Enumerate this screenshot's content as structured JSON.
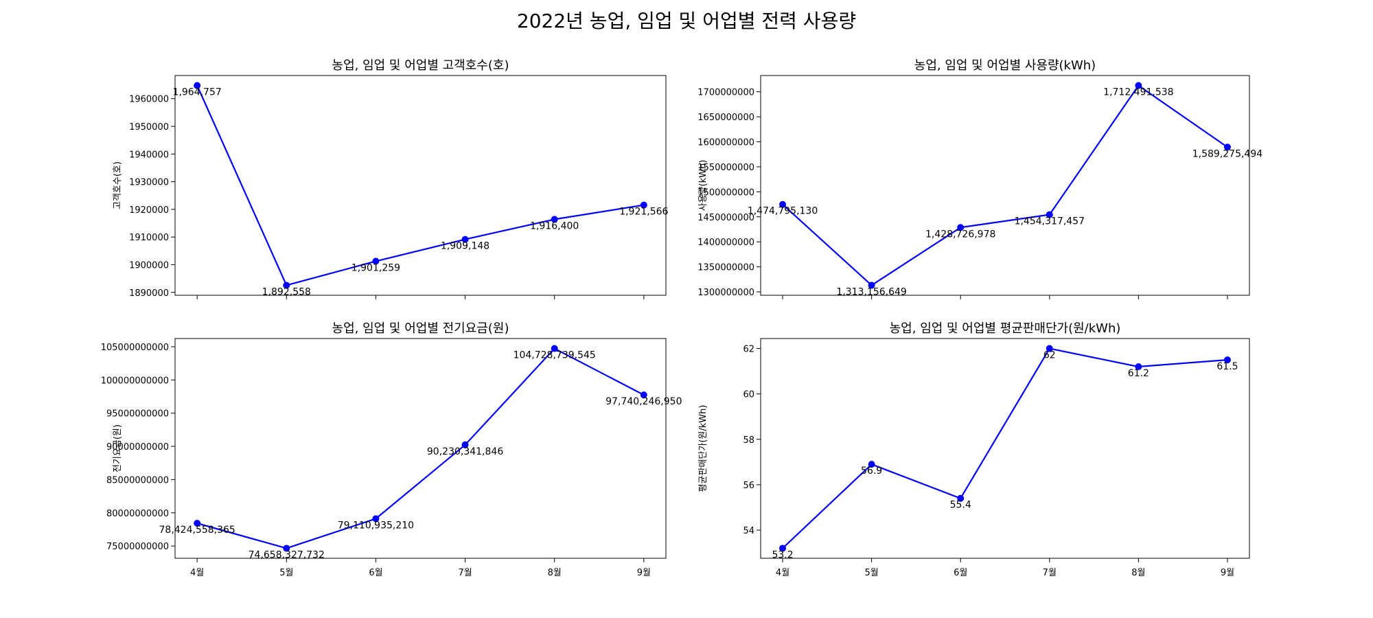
{
  "figure": {
    "title": "2022년 농업, 임업 및 어업별 전력 사용량"
  },
  "colors": {
    "line": "#0000ff",
    "marker": "#0000ff",
    "axes": "#000000",
    "background": "#ffffff"
  },
  "chart_data": [
    {
      "type": "line",
      "title": "농업, 임업 및 어업별 고객호수(호)",
      "xlabel": "",
      "ylabel": "고객호수(호)",
      "categories": [
        "4월",
        "5월",
        "6월",
        "7월",
        "8월",
        "9월"
      ],
      "values": [
        1964757,
        1892558,
        1901259,
        1909148,
        1916400,
        1921566
      ],
      "data_labels": [
        "1,964,757",
        "1,892,558",
        "1,901,259",
        "1,909,148",
        "1,916,400",
        "1,921,566"
      ],
      "ylim": [
        1888950,
        1968365
      ],
      "yticks": [
        1890000,
        1900000,
        1910000,
        1920000,
        1930000,
        1940000,
        1950000,
        1960000
      ],
      "ytick_labels": [
        "1890000",
        "1900000",
        "1910000",
        "1920000",
        "1930000",
        "1940000",
        "1950000",
        "1960000"
      ],
      "show_xticklabels": false,
      "grid": false,
      "marker": "circle"
    },
    {
      "type": "line",
      "title": "농업, 임업 및 어업별 사용량(kWh)",
      "xlabel": "",
      "ylabel": "사용량(kWh)",
      "categories": [
        "4월",
        "5월",
        "6월",
        "7월",
        "8월",
        "9월"
      ],
      "values": [
        1474795130,
        1313156649,
        1428726978,
        1454317457,
        1712491538,
        1589275494
      ],
      "data_labels": [
        "1,474,795,130",
        "1,313,156,649",
        "1,428,726,978",
        "1,454,317,457",
        "1,712,491,538",
        "1,589,275,494"
      ],
      "ylim": [
        1293190000,
        1732457000
      ],
      "yticks": [
        1300000000,
        1350000000,
        1400000000,
        1450000000,
        1500000000,
        1550000000,
        1600000000,
        1650000000,
        1700000000
      ],
      "ytick_labels": [
        "1300000000",
        "1350000000",
        "1400000000",
        "1450000000",
        "1500000000",
        "1550000000",
        "1600000000",
        "1650000000",
        "1700000000"
      ],
      "show_xticklabels": false,
      "grid": false,
      "marker": "circle"
    },
    {
      "type": "line",
      "title": "농업, 임업 및 어업별 전기요금(원)",
      "xlabel": "",
      "ylabel": "전기요금(원)",
      "categories": [
        "4월",
        "5월",
        "6월",
        "7월",
        "8월",
        "9월"
      ],
      "values": [
        78424558365,
        74658327732,
        79110935210,
        90230341846,
        104728739545,
        97740246950
      ],
      "data_labels": [
        "78,424,558,365",
        "74,658,327,732",
        "79,110,935,210",
        "90,230,341,846",
        "104,728,739,545",
        "97,740,246,950"
      ],
      "ylim": [
        73154810000,
        106232260000
      ],
      "yticks": [
        75000000000,
        80000000000,
        85000000000,
        90000000000,
        95000000000,
        100000000000,
        105000000000
      ],
      "ytick_labels": [
        "75000000000",
        "80000000000",
        "85000000000",
        "90000000000",
        "95000000000",
        "100000000000",
        "105000000000"
      ],
      "show_xticklabels": true,
      "grid": false,
      "marker": "circle"
    },
    {
      "type": "line",
      "title": "농업, 임업 및 어업별 평균판매단가(원/kWh)",
      "xlabel": "",
      "ylabel": "평균판매단가(원/kWh)",
      "categories": [
        "4월",
        "5월",
        "6월",
        "7월",
        "8월",
        "9월"
      ],
      "values": [
        53.2,
        56.9,
        55.4,
        62.0,
        61.2,
        61.5
      ],
      "data_labels": [
        "53.2",
        "56.9",
        "55.4",
        "62",
        "61.2",
        "61.5"
      ],
      "ylim": [
        52.76,
        62.44
      ],
      "yticks": [
        54,
        56,
        58,
        60,
        62
      ],
      "ytick_labels": [
        "54",
        "56",
        "58",
        "60",
        "62"
      ],
      "show_xticklabels": true,
      "grid": false,
      "marker": "circle"
    }
  ]
}
